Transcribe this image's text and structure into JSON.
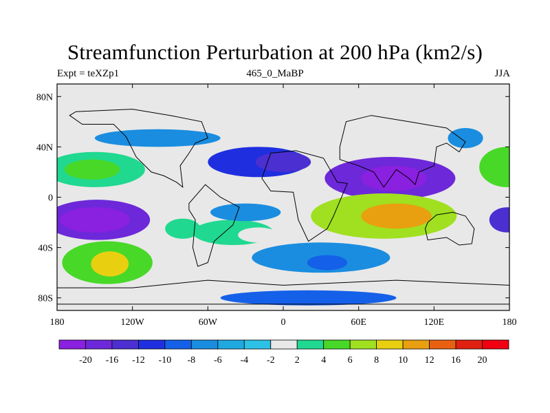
{
  "title": "Streamfunction Perturbation at 200 hPa (km2/s)",
  "left_string": "Expt = teXZp1",
  "center_string": "465_0_MaBP",
  "right_string": "JJA",
  "map": {
    "type": "filled contour map",
    "projection": "cylindrical equidistant",
    "lon_range": [
      -180,
      180
    ],
    "lat_range": [
      -90,
      90
    ],
    "background": "#e8e8e8",
    "coastline_color": "#000000",
    "x_ticks": [
      {
        "value": -180,
        "label": "180"
      },
      {
        "value": -120,
        "label": "120W"
      },
      {
        "value": -60,
        "label": "60W"
      },
      {
        "value": 0,
        "label": "0"
      },
      {
        "value": 60,
        "label": "60E"
      },
      {
        "value": 120,
        "label": "120E"
      },
      {
        "value": 180,
        "label": "180"
      }
    ],
    "y_ticks": [
      {
        "value": 80,
        "label": "80N"
      },
      {
        "value": 40,
        "label": "40N"
      },
      {
        "value": 0,
        "label": "0"
      },
      {
        "value": -40,
        "label": "40S"
      },
      {
        "value": -80,
        "label": "80S"
      }
    ],
    "features": [
      {
        "lon": -150,
        "lat": 22,
        "level": 9,
        "rx": 40,
        "ry": 14
      },
      {
        "lon": -152,
        "lat": 22,
        "level": 10,
        "rx": 22,
        "ry": 8
      },
      {
        "lon": -148,
        "lat": -18,
        "level": 1,
        "rx": 42,
        "ry": 16
      },
      {
        "lon": -150,
        "lat": -18,
        "level": 0,
        "rx": 28,
        "ry": 10
      },
      {
        "lon": -140,
        "lat": -52,
        "level": 10,
        "rx": 36,
        "ry": 17
      },
      {
        "lon": -138,
        "lat": -53,
        "level": 12,
        "rx": 15,
        "ry": 10
      },
      {
        "lon": -40,
        "lat": -28,
        "level": 9,
        "rx": 32,
        "ry": 10
      },
      {
        "lon": -80,
        "lat": -25,
        "level": 9,
        "rx": 14,
        "ry": 8
      },
      {
        "lon": -20,
        "lat": -30,
        "level": 8,
        "rx": 16,
        "ry": 6
      },
      {
        "lon": -30,
        "lat": -12,
        "level": 5,
        "rx": 28,
        "ry": 7
      },
      {
        "lon": 30,
        "lat": -48,
        "level": 5,
        "rx": 55,
        "ry": 12
      },
      {
        "lon": 35,
        "lat": -52,
        "level": 4,
        "rx": 16,
        "ry": 6
      },
      {
        "lon": -20,
        "lat": 28,
        "level": 3,
        "rx": 40,
        "ry": 12
      },
      {
        "lon": 0,
        "lat": 28,
        "level": 2,
        "rx": 22,
        "ry": 8
      },
      {
        "lon": 85,
        "lat": 15,
        "level": 1,
        "rx": 52,
        "ry": 17
      },
      {
        "lon": 88,
        "lat": 15,
        "level": 0,
        "rx": 26,
        "ry": 10
      },
      {
        "lon": 80,
        "lat": -15,
        "level": 11,
        "rx": 58,
        "ry": 18
      },
      {
        "lon": 90,
        "lat": -15,
        "level": 13,
        "rx": 28,
        "ry": 10
      },
      {
        "lon": -100,
        "lat": 47,
        "level": 5,
        "rx": 50,
        "ry": 7
      },
      {
        "lon": 50,
        "lat": 55,
        "level": 8,
        "rx": 40,
        "ry": 8
      },
      {
        "lon": 145,
        "lat": 47,
        "level": 5,
        "rx": 14,
        "ry": 8
      },
      {
        "lon": 178,
        "lat": 24,
        "level": 10,
        "rx": 22,
        "ry": 16
      },
      {
        "lon": 178,
        "lat": -18,
        "level": 2,
        "rx": 14,
        "ry": 10
      },
      {
        "lon": 150,
        "lat": -35,
        "level": 8,
        "rx": 25,
        "ry": 8
      },
      {
        "lon": 20,
        "lat": -80,
        "level": 4,
        "rx": 70,
        "ry": 6
      }
    ]
  },
  "colorbar": {
    "labels": [
      "-20",
      "-16",
      "-12",
      "-10",
      "-8",
      "-6",
      "-4",
      "-2",
      "2",
      "4",
      "6",
      "8",
      "10",
      "12",
      "16",
      "20"
    ],
    "colors": [
      "#8a20e0",
      "#6d28d9",
      "#4b2fd1",
      "#1f2fe0",
      "#1560e8",
      "#1a8de0",
      "#20a8e0",
      "#2ec1e6",
      "#e8e8e8",
      "#20d890",
      "#48d828",
      "#a0e020",
      "#e8d010",
      "#e8a010",
      "#e86010",
      "#e02010",
      "#f00010"
    ]
  }
}
